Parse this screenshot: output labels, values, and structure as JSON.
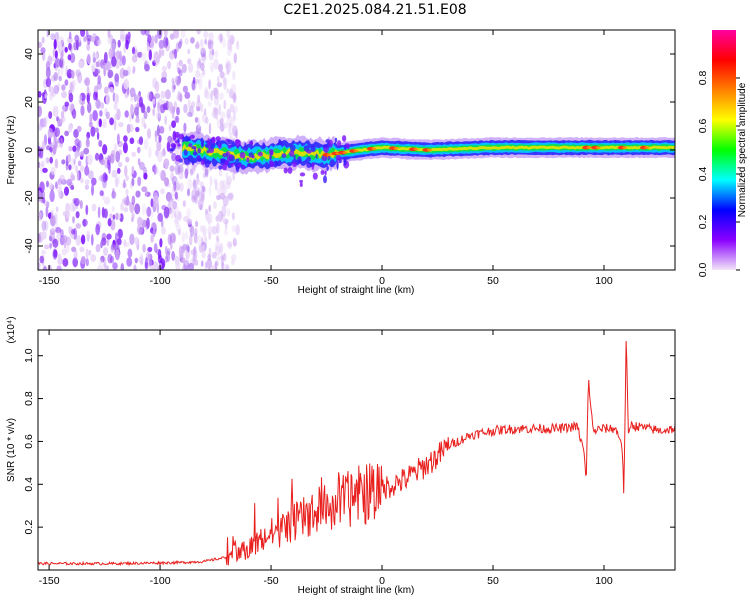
{
  "title": "C2E1.2025.084.21.51.E08",
  "colors": {
    "axis": "#000000",
    "snr_line": "#e8201e",
    "background": "#ffffff"
  },
  "chart_data": [
    {
      "type": "heatmap",
      "xlabel": "Height of straight line (km)",
      "ylabel": "Frequency (Hz)",
      "xlim": [
        -155,
        132
      ],
      "ylim": [
        -50,
        50
      ],
      "x_ticks": [
        -150,
        -100,
        -50,
        0,
        50,
        100
      ],
      "y_ticks": [
        -40,
        -20,
        0,
        20,
        40
      ],
      "colorbar": {
        "label": "Normalized spectral amplitude",
        "range": [
          0,
          1
        ],
        "ticks": [
          "0.0",
          "0.2",
          "0.4",
          "0.6",
          "0.8"
        ],
        "colormap": [
          "#f3e6f7",
          "#8a00ff",
          "#0000ff",
          "#00ffff",
          "#00ff00",
          "#ffff00",
          "#ff8000",
          "#ff0000",
          "#ff00a0"
        ]
      },
      "description_points": {
        "noise_region_km": [
          -155,
          -75
        ],
        "signal_centerline": [
          {
            "x": -90,
            "y": 1
          },
          {
            "x": -75,
            "y": -1
          },
          {
            "x": -60,
            "y": -3
          },
          {
            "x": -40,
            "y": -1
          },
          {
            "x": -25,
            "y": -2
          },
          {
            "x": -10,
            "y": 0
          },
          {
            "x": 0,
            "y": 1
          },
          {
            "x": 20,
            "y": 0
          },
          {
            "x": 50,
            "y": 1
          },
          {
            "x": 90,
            "y": 1
          },
          {
            "x": 110,
            "y": 1
          },
          {
            "x": 132,
            "y": 1
          }
        ]
      }
    },
    {
      "type": "line",
      "xlabel": "Height of straight line (km)",
      "ylabel": "SNR (10 * v/v)",
      "y_multiplier": "(x10⁴)",
      "xlim": [
        -155,
        132
      ],
      "ylim": [
        0,
        1.12
      ],
      "x_ticks": [
        -150,
        -100,
        -50,
        0,
        50,
        100
      ],
      "y_ticks": [
        "0.2",
        "0.4",
        "0.6",
        "0.8",
        "1.0"
      ],
      "series": [
        {
          "color": "#e8201e",
          "x": [
            -155,
            -120,
            -90,
            -80,
            -70,
            -60,
            -50,
            -40,
            -30,
            -20,
            -10,
            0,
            10,
            20,
            25,
            30,
            40,
            50,
            60,
            70,
            80,
            88,
            91,
            92,
            93,
            95,
            100,
            105,
            108,
            109,
            110,
            111,
            112,
            115,
            120,
            125,
            132
          ],
          "y": [
            0.03,
            0.03,
            0.035,
            0.04,
            0.06,
            0.1,
            0.17,
            0.22,
            0.27,
            0.31,
            0.35,
            0.38,
            0.42,
            0.49,
            0.53,
            0.58,
            0.63,
            0.65,
            0.66,
            0.66,
            0.66,
            0.67,
            0.55,
            0.4,
            0.9,
            0.65,
            0.66,
            0.66,
            0.6,
            0.35,
            1.1,
            0.62,
            0.68,
            0.67,
            0.66,
            0.65,
            0.66
          ]
        }
      ]
    }
  ]
}
